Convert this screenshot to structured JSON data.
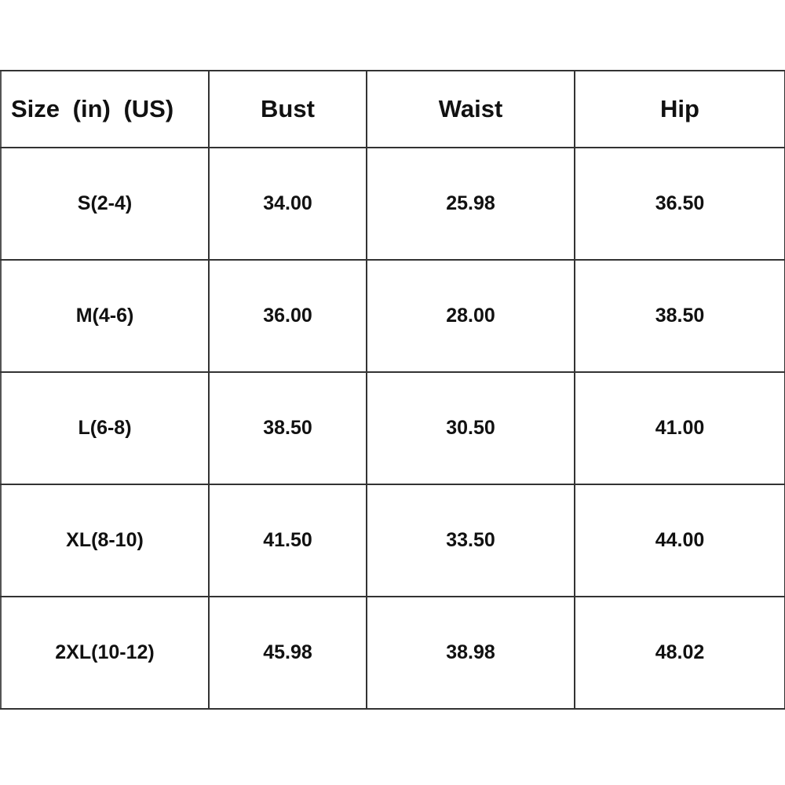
{
  "table": {
    "headers": [
      "Size (in) (US)",
      "Bust",
      "Waist",
      "Hip"
    ],
    "rows": [
      [
        "S(2-4)",
        "34.00",
        "25.98",
        "36.50"
      ],
      [
        "M(4-6)",
        "36.00",
        "28.00",
        "38.50"
      ],
      [
        "L(6-8)",
        "38.50",
        "30.50",
        "41.00"
      ],
      [
        "XL(8-10)",
        "41.50",
        "33.50",
        "44.00"
      ],
      [
        "2XL(10-12)",
        "45.98",
        "38.98",
        "48.02"
      ]
    ]
  }
}
